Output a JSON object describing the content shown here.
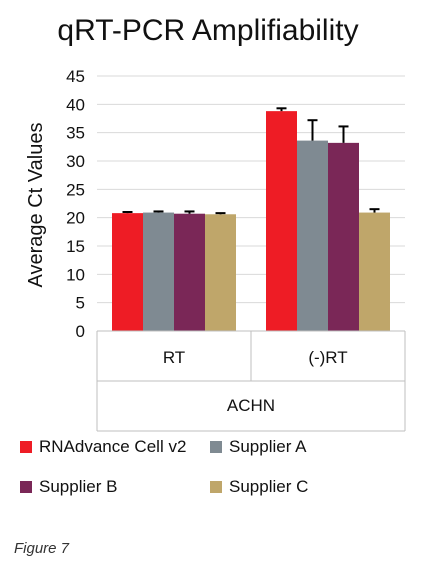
{
  "chart_data": {
    "type": "bar",
    "title": "qRT-PCR Amplifiability",
    "ylabel": "Average Ct Values",
    "xlabel": "ACHN",
    "categories": [
      "RT",
      "(-)RT"
    ],
    "ylim": [
      0,
      45
    ],
    "yticks": [
      0,
      5,
      10,
      15,
      20,
      25,
      30,
      35,
      40,
      45
    ],
    "grid": true,
    "legend_position": "bottom",
    "series": [
      {
        "name": "RNAdvance Cell v2",
        "values": [
          20.8,
          38.8
        ],
        "errors": [
          0.2,
          0.5
        ],
        "color": "#ee1c25"
      },
      {
        "name": "Supplier A",
        "values": [
          20.9,
          33.6
        ],
        "errors": [
          0.2,
          3.6
        ],
        "color": "#7f8a92"
      },
      {
        "name": "Supplier B",
        "values": [
          20.7,
          33.2
        ],
        "errors": [
          0.4,
          2.9
        ],
        "color": "#7a2757"
      },
      {
        "name": "Supplier C",
        "values": [
          20.6,
          20.9
        ],
        "errors": [
          0.2,
          0.6
        ],
        "color": "#bfa66a"
      }
    ]
  },
  "caption": "Figure 7"
}
